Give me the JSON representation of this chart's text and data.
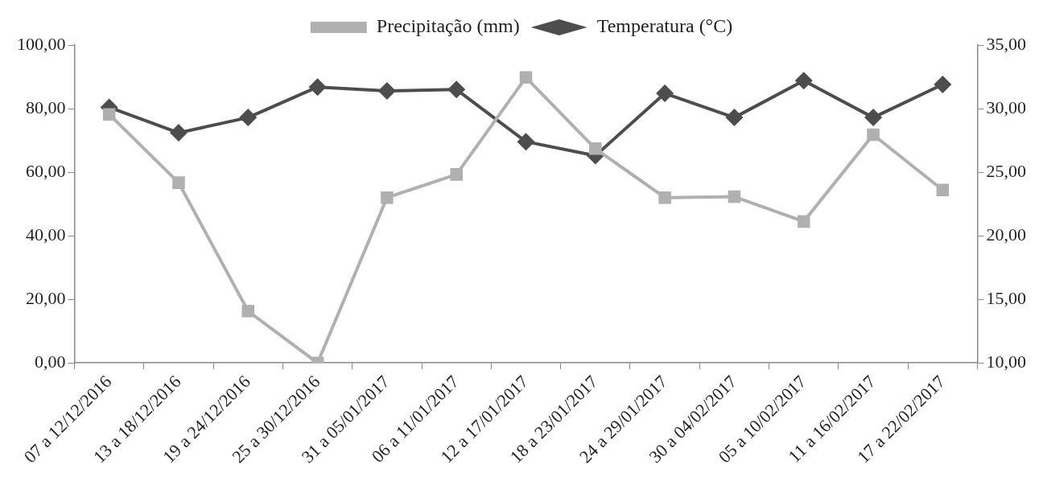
{
  "chart_data": {
    "type": "line",
    "categories": [
      "07 a 12/12/2016",
      "13 a 18/12/2016",
      "19 a 24/12/2016",
      "25 a 30/12/2016",
      "31 a 05/01/2017",
      "06 a 11/01/2017",
      "12 a 17/01/2017",
      "18 a 23/01/2017",
      "24 a 29/01/2017",
      "30 a 04/02/2017",
      "05 a 10/02/2017",
      "11 a 16/02/2017",
      "17 a 22/02/2017"
    ],
    "series": [
      {
        "name": "Precipitação (mm)",
        "color": "#b0b0b0",
        "marker": "square",
        "values": [
          78.2,
          56.7,
          16.3,
          0,
          52.0,
          59.3,
          89.8,
          67.4,
          52.0,
          52.3,
          44.5,
          71.8,
          54.4
        ]
      },
      {
        "name": "Temperatura (°C)",
        "color": "#4d4d4d",
        "marker": "diamond",
        "axis": "y2",
        "values": [
          30.1,
          28.1,
          29.3,
          31.7,
          31.4,
          31.5,
          27.4,
          26.3,
          31.2,
          29.3,
          32.2,
          29.3,
          31.9
        ]
      }
    ],
    "ylim": [
      0,
      100
    ],
    "yticks": [
      {
        "value": 0,
        "label": "0,00"
      },
      {
        "value": 20,
        "label": "20,00"
      },
      {
        "value": 40,
        "label": "40,00"
      },
      {
        "value": 60,
        "label": "60,00"
      },
      {
        "value": 80,
        "label": "80,00"
      },
      {
        "value": 100,
        "label": "100,00"
      }
    ],
    "y2lim": [
      10,
      35
    ],
    "y2ticks": [
      {
        "value": 10,
        "label": "10,00"
      },
      {
        "value": 15,
        "label": "15,00"
      },
      {
        "value": 20,
        "label": "20,00"
      },
      {
        "value": 25,
        "label": "25,00"
      },
      {
        "value": 30,
        "label": "30,00"
      },
      {
        "value": 35,
        "label": "35,00"
      }
    ],
    "grid": false,
    "legend": "top",
    "line_style": "solid"
  }
}
